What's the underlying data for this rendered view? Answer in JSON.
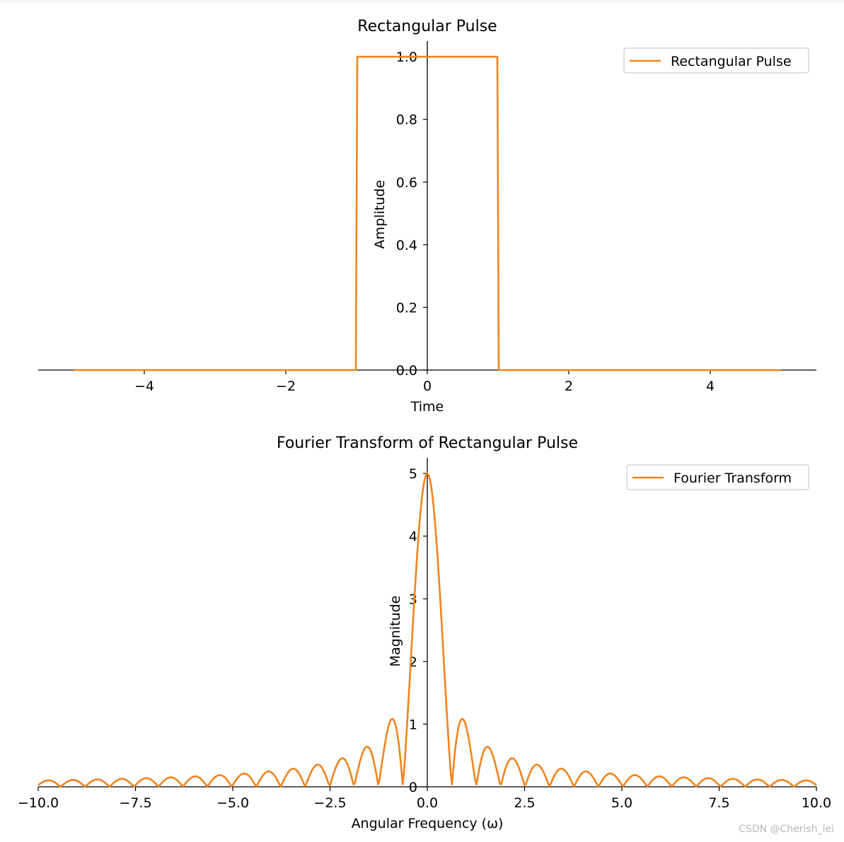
{
  "watermark": "CSDN @Cherish_lei",
  "colors": {
    "series": "#f0841f",
    "axis": "#000000",
    "legend_border": "#cccccc"
  },
  "chart_data": [
    {
      "type": "line",
      "title": "Rectangular Pulse",
      "xlabel": "Time",
      "ylabel": "Amplitude",
      "xlim": [
        -5.5,
        5.5
      ],
      "ylim": [
        0,
        1.05
      ],
      "xticks": [
        -4,
        -2,
        0,
        2,
        4
      ],
      "xtick_labels": [
        "−4",
        "−2",
        "0",
        "2",
        "4"
      ],
      "yticks": [
        0.0,
        0.2,
        0.4,
        0.6,
        0.8,
        1.0
      ],
      "ytick_labels": [
        "0.0",
        "0.2",
        "0.4",
        "0.6",
        "0.8",
        "1.0"
      ],
      "grid": false,
      "legend_position": "top-right",
      "series": [
        {
          "name": "Rectangular Pulse",
          "x": [
            -5,
            -1.01,
            -0.99,
            0.99,
            1.01,
            5
          ],
          "y": [
            0,
            0,
            1,
            1,
            0,
            0
          ]
        }
      ]
    },
    {
      "type": "line",
      "title": "Fourier Transform of Rectangular Pulse",
      "xlabel": "Angular Frequency (ω)",
      "ylabel": "Magnitude",
      "xlim": [
        -10,
        10
      ],
      "ylim": [
        0,
        5.25
      ],
      "xticks": [
        -10,
        -7.5,
        -5,
        -2.5,
        0,
        2.5,
        5,
        7.5,
        10
      ],
      "xtick_labels": [
        "−10.0",
        "−7.5",
        "−5.0",
        "−2.5",
        "0.0",
        "2.5",
        "5.0",
        "7.5",
        "10.0"
      ],
      "yticks": [
        0,
        1,
        2,
        3,
        4,
        5
      ],
      "ytick_labels": [
        "0",
        "1",
        "2",
        "3",
        "4",
        "5"
      ],
      "grid": false,
      "legend_position": "top-right",
      "series": [
        {
          "name": "Fourier Transform",
          "function": "5 * |sinc(5 * omega / pi)|",
          "x_range": [
            -10,
            10
          ]
        }
      ]
    }
  ]
}
